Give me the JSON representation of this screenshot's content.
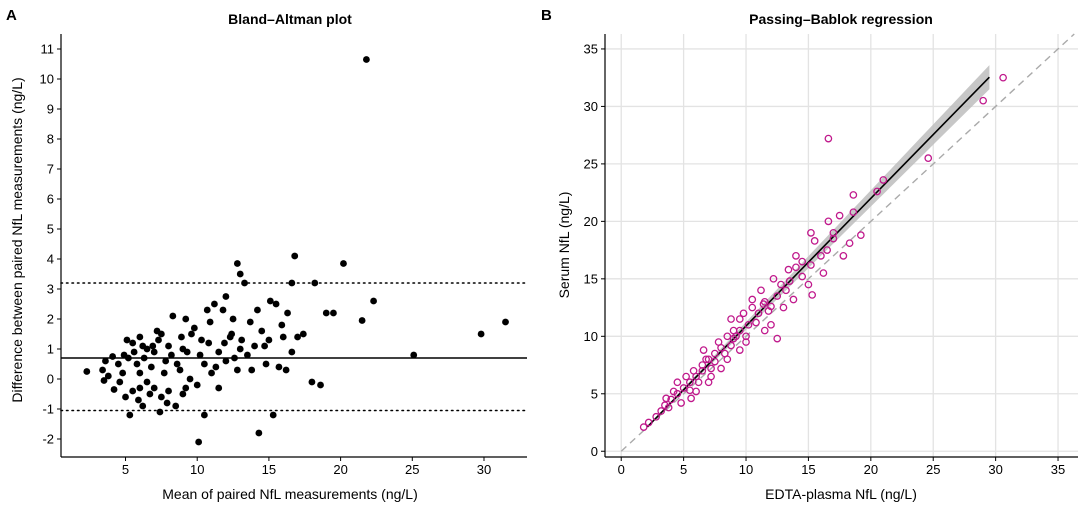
{
  "panel_a_letter": "A",
  "panel_b_letter": "B",
  "chart_data": [
    {
      "type": "scatter",
      "title": "Bland–Altman plot",
      "xlabel": "Mean of paired NfL measurements (ng/L)",
      "ylabel": "Difference between paired NfL measurements (ng/L)",
      "xlim": [
        0.5,
        33
      ],
      "ylim": [
        -2.6,
        11.5
      ],
      "xticks": [
        5,
        10,
        15,
        20,
        25,
        30
      ],
      "yticks": [
        -2,
        -1,
        0,
        1,
        2,
        3,
        4,
        5,
        6,
        7,
        8,
        9,
        10,
        11
      ],
      "grid": false,
      "point_color": "#000000",
      "mean_difference": 0.7,
      "limits_of_agreement": [
        -1.05,
        3.2
      ],
      "points": [
        [
          21.8,
          10.65
        ],
        [
          16.8,
          4.1
        ],
        [
          20.2,
          3.85
        ],
        [
          12.8,
          3.85
        ],
        [
          13.0,
          3.5
        ],
        [
          16.6,
          3.2
        ],
        [
          13.3,
          3.2
        ],
        [
          18.2,
          3.2
        ],
        [
          22.3,
          2.6
        ],
        [
          12.0,
          2.75
        ],
        [
          11.2,
          2.5
        ],
        [
          15.1,
          2.6
        ],
        [
          15.5,
          2.5
        ],
        [
          10.7,
          2.3
        ],
        [
          11.8,
          2.3
        ],
        [
          19.0,
          2.2
        ],
        [
          19.5,
          2.2
        ],
        [
          14.2,
          2.3
        ],
        [
          16.3,
          2.2
        ],
        [
          8.3,
          2.1
        ],
        [
          9.2,
          2.0
        ],
        [
          12.5,
          2.0
        ],
        [
          13.7,
          1.9
        ],
        [
          21.5,
          1.95
        ],
        [
          31.5,
          1.9
        ],
        [
          29.8,
          1.5
        ],
        [
          17.0,
          1.4
        ],
        [
          15.0,
          1.3
        ],
        [
          16.0,
          1.4
        ],
        [
          12.4,
          1.5
        ],
        [
          6.0,
          1.4
        ],
        [
          7.2,
          1.6
        ],
        [
          10.8,
          1.2
        ],
        [
          13.0,
          1.0
        ],
        [
          25.1,
          0.8
        ],
        [
          18.0,
          -0.1
        ],
        [
          18.6,
          -0.2
        ],
        [
          14.3,
          -1.8
        ],
        [
          10.1,
          -2.1
        ],
        [
          10.5,
          -1.2
        ],
        [
          15.3,
          -1.2
        ],
        [
          5.3,
          -1.2
        ],
        [
          6.2,
          -0.9
        ],
        [
          7.4,
          -1.1
        ],
        [
          2.3,
          0.25
        ],
        [
          3.4,
          0.3
        ],
        [
          3.6,
          0.6
        ],
        [
          4.1,
          0.75
        ],
        [
          3.8,
          0.1
        ],
        [
          3.5,
          -0.05
        ],
        [
          4.2,
          -0.35
        ],
        [
          5.0,
          -0.6
        ],
        [
          6.0,
          -0.3
        ],
        [
          5.5,
          1.2
        ],
        [
          6.5,
          1.0
        ],
        [
          7.0,
          0.9
        ],
        [
          8.0,
          1.1
        ],
        [
          9.0,
          1.0
        ],
        [
          9.6,
          1.5
        ],
        [
          10.2,
          0.8
        ],
        [
          11.5,
          0.9
        ],
        [
          12.0,
          0.6
        ],
        [
          13.5,
          0.8
        ],
        [
          14.0,
          1.1
        ],
        [
          14.8,
          0.5
        ],
        [
          15.7,
          0.4
        ],
        [
          16.2,
          0.3
        ],
        [
          12.8,
          0.3
        ],
        [
          11.0,
          0.2
        ],
        [
          10.0,
          -0.2
        ],
        [
          9.0,
          -0.5
        ],
        [
          8.5,
          -0.9
        ],
        [
          8.0,
          -0.4
        ],
        [
          7.5,
          -0.6
        ],
        [
          7.0,
          -0.3
        ],
        [
          6.5,
          -0.1
        ],
        [
          6.0,
          0.2
        ],
        [
          5.8,
          0.5
        ],
        [
          5.2,
          0.7
        ],
        [
          4.8,
          0.2
        ],
        [
          4.6,
          -0.1
        ],
        [
          5.5,
          -0.4
        ],
        [
          6.8,
          0.4
        ],
        [
          7.8,
          0.6
        ],
        [
          8.8,
          0.3
        ],
        [
          9.5,
          0.0
        ],
        [
          10.5,
          0.5
        ],
        [
          11.5,
          -0.3
        ],
        [
          12.3,
          1.4
        ],
        [
          13.1,
          1.3
        ],
        [
          14.5,
          1.6
        ],
        [
          7.3,
          1.3
        ],
        [
          8.2,
          0.8
        ],
        [
          9.8,
          1.7
        ],
        [
          10.9,
          1.9
        ],
        [
          6.3,
          0.7
        ],
        [
          6.9,
          1.1
        ],
        [
          7.7,
          0.2
        ],
        [
          8.6,
          0.5
        ],
        [
          9.3,
          0.9
        ],
        [
          4.5,
          0.5
        ],
        [
          5.1,
          1.3
        ],
        [
          5.9,
          -0.7
        ],
        [
          6.7,
          -0.5
        ],
        [
          7.9,
          -0.8
        ],
        [
          9.2,
          -0.3
        ],
        [
          11.3,
          0.4
        ],
        [
          12.6,
          0.7
        ],
        [
          13.8,
          0.3
        ],
        [
          15.9,
          1.8
        ],
        [
          17.4,
          1.5
        ],
        [
          16.6,
          0.9
        ],
        [
          14.7,
          1.1
        ],
        [
          11.9,
          1.2
        ],
        [
          10.3,
          1.3
        ],
        [
          8.9,
          1.4
        ],
        [
          7.5,
          1.5
        ],
        [
          6.2,
          1.1
        ],
        [
          5.6,
          0.9
        ],
        [
          4.9,
          0.8
        ]
      ]
    },
    {
      "type": "scatter",
      "title": "Passing–Bablok regression",
      "xlabel": "EDTA-plasma NfL (ng/L)",
      "ylabel": "Serum NfL (ng/L)",
      "xlim": [
        -1.3,
        36.6
      ],
      "ylim": [
        -0.5,
        36.3
      ],
      "xticks": [
        0,
        5,
        10,
        15,
        20,
        25,
        30,
        35
      ],
      "yticks": [
        0,
        5,
        10,
        15,
        20,
        25,
        30,
        35
      ],
      "grid": true,
      "point_color": "#c0198c",
      "regression_line": {
        "slope": 1.11,
        "intercept": -0.2,
        "x_range": [
          2.1,
          29.5
        ]
      },
      "identity_line": true,
      "points": [
        [
          16.6,
          27.2
        ],
        [
          30.6,
          32.5
        ],
        [
          29.0,
          30.5
        ],
        [
          24.6,
          25.5
        ],
        [
          21.0,
          23.6
        ],
        [
          20.5,
          22.6
        ],
        [
          18.6,
          22.3
        ],
        [
          17.5,
          20.5
        ],
        [
          16.6,
          20.0
        ],
        [
          18.6,
          20.8
        ],
        [
          17.0,
          18.5
        ],
        [
          18.3,
          18.1
        ],
        [
          19.2,
          18.8
        ],
        [
          15.2,
          19.0
        ],
        [
          15.5,
          18.3
        ],
        [
          16.5,
          17.5
        ],
        [
          17.8,
          17.0
        ],
        [
          14.0,
          16.0
        ],
        [
          15.2,
          16.2
        ],
        [
          16.2,
          15.5
        ],
        [
          15.3,
          13.6
        ],
        [
          13.2,
          14.0
        ],
        [
          12.5,
          13.5
        ],
        [
          14.5,
          15.2
        ],
        [
          11.5,
          13.0
        ],
        [
          10.5,
          12.5
        ],
        [
          12.0,
          12.6
        ],
        [
          13.8,
          13.2
        ],
        [
          9.5,
          11.5
        ],
        [
          10.2,
          11.0
        ],
        [
          11.0,
          12.0
        ],
        [
          12.5,
          9.8
        ],
        [
          8.5,
          10.0
        ],
        [
          9.0,
          10.5
        ],
        [
          10.0,
          9.5
        ],
        [
          11.5,
          10.5
        ],
        [
          7.5,
          8.5
        ],
        [
          8.0,
          9.0
        ],
        [
          8.8,
          9.2
        ],
        [
          9.5,
          8.8
        ],
        [
          6.5,
          7.5
        ],
        [
          7.0,
          8.0
        ],
        [
          7.5,
          7.8
        ],
        [
          8.5,
          8.0
        ],
        [
          9.0,
          9.8
        ],
        [
          5.5,
          6.0
        ],
        [
          6.0,
          6.5
        ],
        [
          6.5,
          7.0
        ],
        [
          7.2,
          6.5
        ],
        [
          5.0,
          5.5
        ],
        [
          5.5,
          5.3
        ],
        [
          4.5,
          5.0
        ],
        [
          4.0,
          4.5
        ],
        [
          4.8,
          4.2
        ],
        [
          3.5,
          4.0
        ],
        [
          3.8,
          3.8
        ],
        [
          3.2,
          3.5
        ],
        [
          2.8,
          3.0
        ],
        [
          2.2,
          2.5
        ],
        [
          1.8,
          2.1
        ],
        [
          6.0,
          5.2
        ],
        [
          7.0,
          6.0
        ],
        [
          8.0,
          7.2
        ],
        [
          9.5,
          10.5
        ],
        [
          10.8,
          11.2
        ],
        [
          11.8,
          12.2
        ],
        [
          12.8,
          14.5
        ],
        [
          13.5,
          14.8
        ],
        [
          14.5,
          16.5
        ],
        [
          16.0,
          17.0
        ],
        [
          17.0,
          19.0
        ],
        [
          10.5,
          13.2
        ],
        [
          12.0,
          11.0
        ],
        [
          13.0,
          12.5
        ],
        [
          15.0,
          14.5
        ],
        [
          7.8,
          9.5
        ],
        [
          6.8,
          8.0
        ],
        [
          5.8,
          7.0
        ],
        [
          4.5,
          6.0
        ],
        [
          9.8,
          12.0
        ],
        [
          11.2,
          14.0
        ],
        [
          12.2,
          15.0
        ],
        [
          14.0,
          17.0
        ],
        [
          8.8,
          11.5
        ],
        [
          10.0,
          10.0
        ],
        [
          5.2,
          6.5
        ],
        [
          6.2,
          6.0
        ],
        [
          7.2,
          7.2
        ],
        [
          8.3,
          8.5
        ],
        [
          9.2,
          10.0
        ],
        [
          4.2,
          5.2
        ],
        [
          3.6,
          4.6
        ],
        [
          6.6,
          8.8
        ],
        [
          5.6,
          4.6
        ],
        [
          11.4,
          12.8
        ],
        [
          13.4,
          15.8
        ]
      ]
    }
  ]
}
